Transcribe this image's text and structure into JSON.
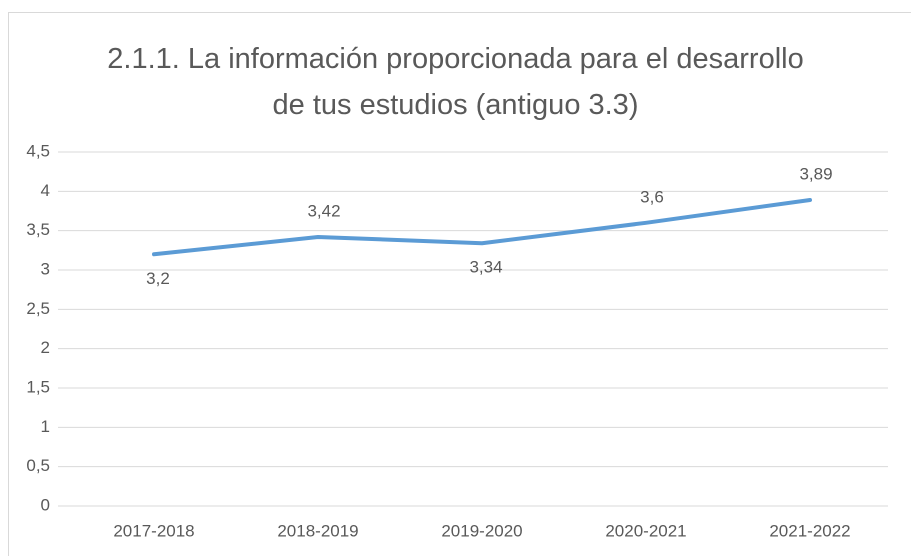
{
  "chart_data": {
    "type": "line",
    "title": "2.1.1. La información proporcionada para el desarrollo de tus estudios (antiguo 3.3)",
    "categories": [
      "2017-2018",
      "2018-2019",
      "2019-2020",
      "2020-2021",
      "2021-2022"
    ],
    "values": [
      3.2,
      3.42,
      3.34,
      3.6,
      3.89
    ],
    "value_labels": [
      "3,2",
      "3,42",
      "3,34",
      "3,6",
      "3,89"
    ],
    "color": "#5b9bd5",
    "ylim": [
      0,
      4.5
    ],
    "yticks": [
      0,
      {
        "value": 0.5,
        "label": "0,5"
      },
      1,
      {
        "value": 1.5,
        "label": "1,5"
      },
      2,
      {
        "value": 2.5,
        "label": "2,5"
      },
      3,
      {
        "value": 3.5,
        "label": "3,5"
      },
      4,
      {
        "value": 4.5,
        "label": "4,5"
      }
    ],
    "grid": true
  }
}
